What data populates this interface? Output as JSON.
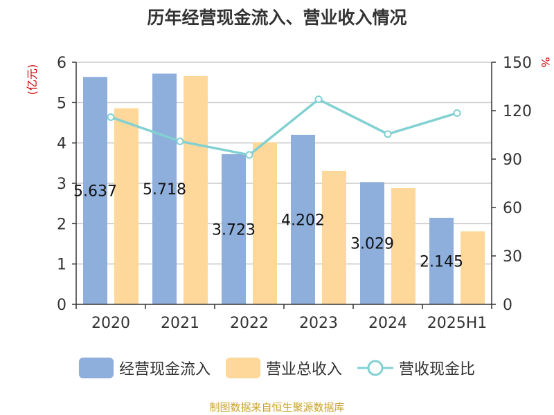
{
  "chart_data": {
    "type": "bar",
    "title": "历年经营现金流入、营业收入情况",
    "categories": [
      "2020",
      "2021",
      "2022",
      "2023",
      "2024",
      "2025H1"
    ],
    "y_left": {
      "label": "(亿元)",
      "ticks": [
        "0",
        "1",
        "2",
        "3",
        "4",
        "5",
        "6"
      ],
      "ylim": [
        0,
        6
      ]
    },
    "y_right": {
      "label": "%",
      "ticks": [
        "0",
        "30",
        "60",
        "90",
        "120",
        "150"
      ],
      "ylim": [
        0,
        150
      ]
    },
    "series": [
      {
        "name": "经营现金流入",
        "type": "bar",
        "axis": "left",
        "color": "#8eaedb",
        "values": [
          5.637,
          5.718,
          3.723,
          4.202,
          3.029,
          2.145
        ],
        "labels": [
          "5.637",
          "5.718",
          "3.723",
          "4.202",
          "3.029",
          "2.145"
        ]
      },
      {
        "name": "营业总收入",
        "type": "bar",
        "axis": "left",
        "color": "#fdd89a",
        "values": [
          4.86,
          5.66,
          4.02,
          3.31,
          2.88,
          1.81
        ]
      },
      {
        "name": "营收现金比",
        "type": "line",
        "axis": "right",
        "color": "#82d0d2",
        "values": [
          116,
          101,
          92.6,
          127,
          105.5,
          118.5
        ]
      }
    ],
    "grid": true,
    "legend_position": "bottom"
  },
  "source_note": "制图数据来自恒生聚源数据库"
}
